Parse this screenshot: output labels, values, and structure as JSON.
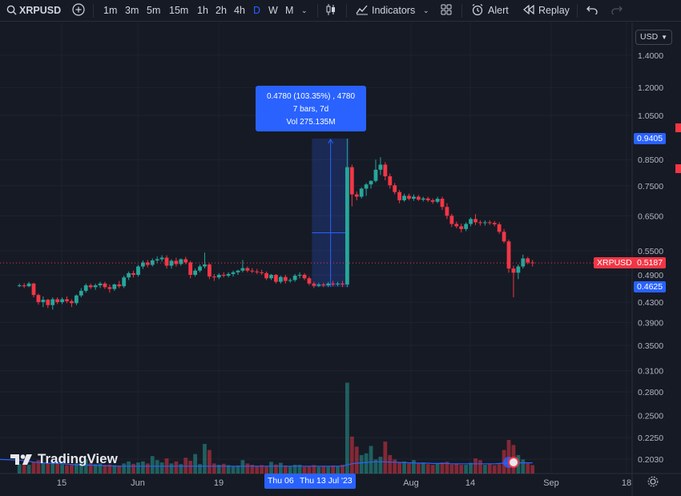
{
  "toolbar": {
    "symbol": "XRPUSD",
    "timeframes": [
      "1m",
      "3m",
      "5m",
      "15m",
      "1h",
      "2h",
      "4h",
      "D",
      "W",
      "M"
    ],
    "active_timeframe": "D",
    "indicators_label": "Indicators",
    "alert_label": "Alert",
    "replay_label": "Replay"
  },
  "currency_button": "USD",
  "price_axis": {
    "ticks": [
      "1.4000",
      "1.2000",
      "1.0500",
      "0.8500",
      "0.7500",
      "0.6500",
      "0.5500",
      "0.4900",
      "0.4300",
      "0.3900",
      "0.3500",
      "0.3100",
      "0.2800",
      "0.2500",
      "0.2250",
      "0.2030"
    ],
    "tags": {
      "measure_top": "0.9405",
      "measure_bottom": "0.4625",
      "last_price": "0.5187",
      "symbol": "XRPUSD"
    }
  },
  "time_axis": {
    "labels": [
      "15",
      "Jun",
      "19",
      "Aug",
      "14",
      "Sep",
      "18"
    ],
    "highlight_start": "Thu 06",
    "highlight_end": "Thu 13 Jul '23"
  },
  "measure_tooltip": {
    "line1": "0.4780 (103.35%) , 4780",
    "line2": "7 bars, 7d",
    "line3": "Vol 275.135M"
  },
  "watermark": "TradingView",
  "colors": {
    "up": "#26a69a",
    "down": "#f23645",
    "accent": "#2962ff",
    "background": "#161a25"
  },
  "chart_data": {
    "type": "candlestick",
    "symbol": "XRPUSD",
    "interval": "1D",
    "y_scale": "log",
    "ylim": [
      0.19,
      1.45
    ],
    "x_range": [
      "2023-05-05",
      "2023-09-20"
    ],
    "last_price": 0.5187,
    "candles": [
      [
        "2023-05-05",
        0.465,
        0.47,
        0.462,
        0.466
      ],
      [
        "2023-05-06",
        0.466,
        0.471,
        0.46,
        0.464
      ],
      [
        "2023-05-07",
        0.464,
        0.474,
        0.462,
        0.47
      ],
      [
        "2023-05-08",
        0.47,
        0.472,
        0.44,
        0.445
      ],
      [
        "2023-05-09",
        0.445,
        0.448,
        0.425,
        0.43
      ],
      [
        "2023-05-10",
        0.43,
        0.442,
        0.42,
        0.435
      ],
      [
        "2023-05-11",
        0.435,
        0.437,
        0.418,
        0.424
      ],
      [
        "2023-05-12",
        0.424,
        0.44,
        0.415,
        0.436
      ],
      [
        "2023-05-13",
        0.436,
        0.44,
        0.426,
        0.43
      ],
      [
        "2023-05-14",
        0.43,
        0.44,
        0.426,
        0.436
      ],
      [
        "2023-05-15",
        0.436,
        0.442,
        0.428,
        0.432
      ],
      [
        "2023-05-16",
        0.432,
        0.436,
        0.42,
        0.428
      ],
      [
        "2023-05-17",
        0.428,
        0.446,
        0.424,
        0.444
      ],
      [
        "2023-05-18",
        0.444,
        0.46,
        0.44,
        0.454
      ],
      [
        "2023-05-19",
        0.454,
        0.47,
        0.45,
        0.466
      ],
      [
        "2023-05-20",
        0.466,
        0.47,
        0.458,
        0.462
      ],
      [
        "2023-05-21",
        0.462,
        0.47,
        0.456,
        0.466
      ],
      [
        "2023-05-22",
        0.466,
        0.474,
        0.46,
        0.47
      ],
      [
        "2023-05-23",
        0.47,
        0.474,
        0.458,
        0.462
      ],
      [
        "2023-05-24",
        0.462,
        0.468,
        0.45,
        0.458
      ],
      [
        "2023-05-25",
        0.458,
        0.47,
        0.454,
        0.468
      ],
      [
        "2023-05-26",
        0.468,
        0.476,
        0.46,
        0.464
      ],
      [
        "2023-05-27",
        0.464,
        0.488,
        0.46,
        0.484
      ],
      [
        "2023-05-28",
        0.484,
        0.498,
        0.478,
        0.494
      ],
      [
        "2023-05-29",
        0.494,
        0.5,
        0.484,
        0.49
      ],
      [
        "2023-05-30",
        0.49,
        0.514,
        0.486,
        0.51
      ],
      [
        "2023-05-31",
        0.51,
        0.525,
        0.504,
        0.52
      ],
      [
        "2023-06-01",
        0.52,
        0.526,
        0.508,
        0.514
      ],
      [
        "2023-06-02",
        0.514,
        0.53,
        0.51,
        0.525
      ],
      [
        "2023-06-03",
        0.525,
        0.535,
        0.518,
        0.528
      ],
      [
        "2023-06-04",
        0.528,
        0.538,
        0.522,
        0.532
      ],
      [
        "2023-06-05",
        0.532,
        0.538,
        0.505,
        0.512
      ],
      [
        "2023-06-06",
        0.512,
        0.528,
        0.505,
        0.524
      ],
      [
        "2023-06-07",
        0.524,
        0.532,
        0.51,
        0.516
      ],
      [
        "2023-06-08",
        0.516,
        0.53,
        0.512,
        0.528
      ],
      [
        "2023-06-09",
        0.528,
        0.534,
        0.515,
        0.52
      ],
      [
        "2023-06-10",
        0.52,
        0.524,
        0.482,
        0.49
      ],
      [
        "2023-06-11",
        0.49,
        0.505,
        0.486,
        0.5
      ],
      [
        "2023-06-12",
        0.5,
        0.515,
        0.496,
        0.51
      ],
      [
        "2023-06-13",
        0.51,
        0.545,
        0.505,
        0.515
      ],
      [
        "2023-06-14",
        0.515,
        0.518,
        0.48,
        0.486
      ],
      [
        "2023-06-15",
        0.486,
        0.492,
        0.476,
        0.484
      ],
      [
        "2023-06-16",
        0.484,
        0.494,
        0.48,
        0.49
      ],
      [
        "2023-06-17",
        0.49,
        0.496,
        0.484,
        0.488
      ],
      [
        "2023-06-18",
        0.488,
        0.496,
        0.484,
        0.492
      ],
      [
        "2023-06-19",
        0.492,
        0.5,
        0.486,
        0.496
      ],
      [
        "2023-06-20",
        0.496,
        0.502,
        0.49,
        0.5
      ],
      [
        "2023-06-21",
        0.5,
        0.526,
        0.496,
        0.506
      ],
      [
        "2023-06-22",
        0.506,
        0.51,
        0.496,
        0.5
      ],
      [
        "2023-06-23",
        0.5,
        0.506,
        0.494,
        0.498
      ],
      [
        "2023-06-24",
        0.498,
        0.504,
        0.492,
        0.496
      ],
      [
        "2023-06-25",
        0.496,
        0.502,
        0.49,
        0.494
      ],
      [
        "2023-06-26",
        0.494,
        0.498,
        0.478,
        0.482
      ],
      [
        "2023-06-27",
        0.482,
        0.492,
        0.478,
        0.49
      ],
      [
        "2023-06-28",
        0.49,
        0.492,
        0.47,
        0.474
      ],
      [
        "2023-06-29",
        0.474,
        0.488,
        0.47,
        0.485
      ],
      [
        "2023-06-30",
        0.485,
        0.49,
        0.47,
        0.476
      ],
      [
        "2023-07-01",
        0.476,
        0.482,
        0.472,
        0.478
      ],
      [
        "2023-07-02",
        0.478,
        0.492,
        0.474,
        0.488
      ],
      [
        "2023-07-03",
        0.488,
        0.496,
        0.482,
        0.49
      ],
      [
        "2023-07-04",
        0.49,
        0.494,
        0.478,
        0.482
      ],
      [
        "2023-07-05",
        0.482,
        0.486,
        0.466,
        0.47
      ],
      [
        "2023-07-06",
        0.47,
        0.474,
        0.46,
        0.465
      ],
      [
        "2023-07-07",
        0.465,
        0.472,
        0.462,
        0.468
      ],
      [
        "2023-07-08",
        0.468,
        0.472,
        0.462,
        0.466
      ],
      [
        "2023-07-09",
        0.466,
        0.474,
        0.462,
        0.47
      ],
      [
        "2023-07-10",
        0.47,
        0.476,
        0.464,
        0.468
      ],
      [
        "2023-07-11",
        0.468,
        0.474,
        0.464,
        0.47
      ],
      [
        "2023-07-12",
        0.47,
        0.476,
        0.462,
        0.468
      ],
      [
        "2023-07-13",
        0.468,
        0.94,
        0.462,
        0.82
      ],
      [
        "2023-07-14",
        0.82,
        0.83,
        0.68,
        0.72
      ],
      [
        "2023-07-15",
        0.72,
        0.73,
        0.7,
        0.712
      ],
      [
        "2023-07-16",
        0.712,
        0.745,
        0.706,
        0.74
      ],
      [
        "2023-07-17",
        0.74,
        0.76,
        0.715,
        0.755
      ],
      [
        "2023-07-18",
        0.755,
        0.77,
        0.74,
        0.768
      ],
      [
        "2023-07-19",
        0.768,
        0.85,
        0.762,
        0.81
      ],
      [
        "2023-07-20",
        0.81,
        0.86,
        0.79,
        0.83
      ],
      [
        "2023-07-21",
        0.83,
        0.84,
        0.77,
        0.785
      ],
      [
        "2023-07-22",
        0.785,
        0.795,
        0.74,
        0.752
      ],
      [
        "2023-07-23",
        0.752,
        0.76,
        0.72,
        0.728
      ],
      [
        "2023-07-24",
        0.728,
        0.735,
        0.69,
        0.7
      ],
      [
        "2023-07-25",
        0.7,
        0.722,
        0.695,
        0.715
      ],
      [
        "2023-07-26",
        0.715,
        0.722,
        0.7,
        0.705
      ],
      [
        "2023-07-27",
        0.705,
        0.72,
        0.698,
        0.712
      ],
      [
        "2023-07-28",
        0.712,
        0.718,
        0.698,
        0.702
      ],
      [
        "2023-07-29",
        0.702,
        0.712,
        0.696,
        0.706
      ],
      [
        "2023-07-30",
        0.706,
        0.712,
        0.694,
        0.7
      ],
      [
        "2023-07-31",
        0.7,
        0.706,
        0.688,
        0.695
      ],
      [
        "2023-08-01",
        0.695,
        0.712,
        0.69,
        0.705
      ],
      [
        "2023-08-02",
        0.705,
        0.712,
        0.668,
        0.678
      ],
      [
        "2023-08-03",
        0.678,
        0.69,
        0.64,
        0.65
      ],
      [
        "2023-08-04",
        0.65,
        0.656,
        0.616,
        0.625
      ],
      [
        "2023-08-05",
        0.625,
        0.632,
        0.612,
        0.618
      ],
      [
        "2023-08-06",
        0.618,
        0.626,
        0.6,
        0.61
      ],
      [
        "2023-08-07",
        0.61,
        0.63,
        0.604,
        0.625
      ],
      [
        "2023-08-08",
        0.625,
        0.645,
        0.618,
        0.64
      ],
      [
        "2023-08-09",
        0.64,
        0.655,
        0.622,
        0.63
      ],
      [
        "2023-08-10",
        0.63,
        0.636,
        0.62,
        0.628
      ],
      [
        "2023-08-11",
        0.628,
        0.636,
        0.62,
        0.63
      ],
      [
        "2023-08-12",
        0.63,
        0.636,
        0.622,
        0.628
      ],
      [
        "2023-08-13",
        0.628,
        0.634,
        0.618,
        0.624
      ],
      [
        "2023-08-14",
        0.624,
        0.63,
        0.596,
        0.602
      ],
      [
        "2023-08-15",
        0.602,
        0.61,
        0.57,
        0.575
      ],
      [
        "2023-08-16",
        0.575,
        0.58,
        0.495,
        0.505
      ],
      [
        "2023-08-17",
        0.505,
        0.512,
        0.44,
        0.495
      ],
      [
        "2023-08-18",
        0.495,
        0.515,
        0.48,
        0.51
      ],
      [
        "2023-08-19",
        0.51,
        0.54,
        0.505,
        0.53
      ],
      [
        "2023-08-20",
        0.53,
        0.534,
        0.515,
        0.52
      ],
      [
        "2023-08-21",
        0.52,
        0.526,
        0.51,
        0.518
      ]
    ],
    "volume_sma": [
      0.4,
      0.38,
      0.36,
      0.34,
      0.33,
      0.32,
      0.31,
      0.3,
      0.3,
      0.29,
      0.28,
      0.27,
      0.26,
      0.26,
      0.25,
      0.25,
      0.24,
      0.24,
      0.23,
      0.23,
      0.22,
      0.22,
      0.22,
      0.22,
      0.22,
      0.22,
      0.22,
      0.22,
      0.22,
      0.22,
      0.22,
      0.22,
      0.22,
      0.22,
      0.22,
      0.22,
      0.22,
      0.22,
      0.22,
      0.22,
      0.22,
      0.22,
      0.22,
      0.22,
      0.22,
      0.22,
      0.22,
      0.22,
      0.22,
      0.22,
      0.22,
      0.22,
      0.22,
      0.22,
      0.22,
      0.22,
      0.22,
      0.22,
      0.22,
      0.22,
      0.22,
      0.22,
      0.22,
      0.22,
      0.22,
      0.22,
      0.22,
      0.22,
      0.22,
      0.26,
      0.29,
      0.31,
      0.32,
      0.33,
      0.34,
      0.35,
      0.35,
      0.35,
      0.34,
      0.34,
      0.33,
      0.33,
      0.32,
      0.32,
      0.31,
      0.31,
      0.31,
      0.3,
      0.3,
      0.3,
      0.3,
      0.29,
      0.29,
      0.29,
      0.29,
      0.29,
      0.29,
      0.29,
      0.29,
      0.29,
      0.29,
      0.3,
      0.31,
      0.32,
      0.32,
      0.32,
      0.32,
      0.32,
      0.32
    ],
    "volume": [
      0.28,
      0.3,
      0.26,
      0.35,
      0.4,
      0.33,
      0.3,
      0.29,
      0.31,
      0.27,
      0.25,
      0.28,
      0.3,
      0.33,
      0.42,
      0.31,
      0.28,
      0.3,
      0.26,
      0.27,
      0.25,
      0.24,
      0.3,
      0.36,
      0.29,
      0.33,
      0.36,
      0.3,
      0.52,
      0.4,
      0.33,
      0.45,
      0.3,
      0.36,
      0.28,
      0.47,
      0.38,
      0.58,
      0.28,
      0.88,
      0.7,
      0.3,
      0.26,
      0.29,
      0.25,
      0.22,
      0.24,
      0.4,
      0.3,
      0.26,
      0.23,
      0.25,
      0.22,
      0.35,
      0.27,
      0.32,
      0.24,
      0.22,
      0.26,
      0.26,
      0.2,
      0.22,
      0.25,
      0.2,
      0.23,
      0.21,
      0.24,
      0.22,
      0.26,
      2.7,
      1.1,
      0.8,
      0.55,
      0.6,
      0.82,
      0.42,
      0.5,
      0.95,
      0.55,
      0.42,
      0.34,
      0.36,
      0.3,
      0.4,
      0.3,
      0.33,
      0.28,
      0.26,
      0.3,
      0.33,
      0.35,
      0.27,
      0.3,
      0.26,
      0.26,
      0.32,
      0.45,
      0.4,
      0.26,
      0.28,
      0.25,
      0.28,
      0.7,
      1.0,
      0.85,
      0.55,
      0.42,
      0.3,
      0.25
    ]
  }
}
